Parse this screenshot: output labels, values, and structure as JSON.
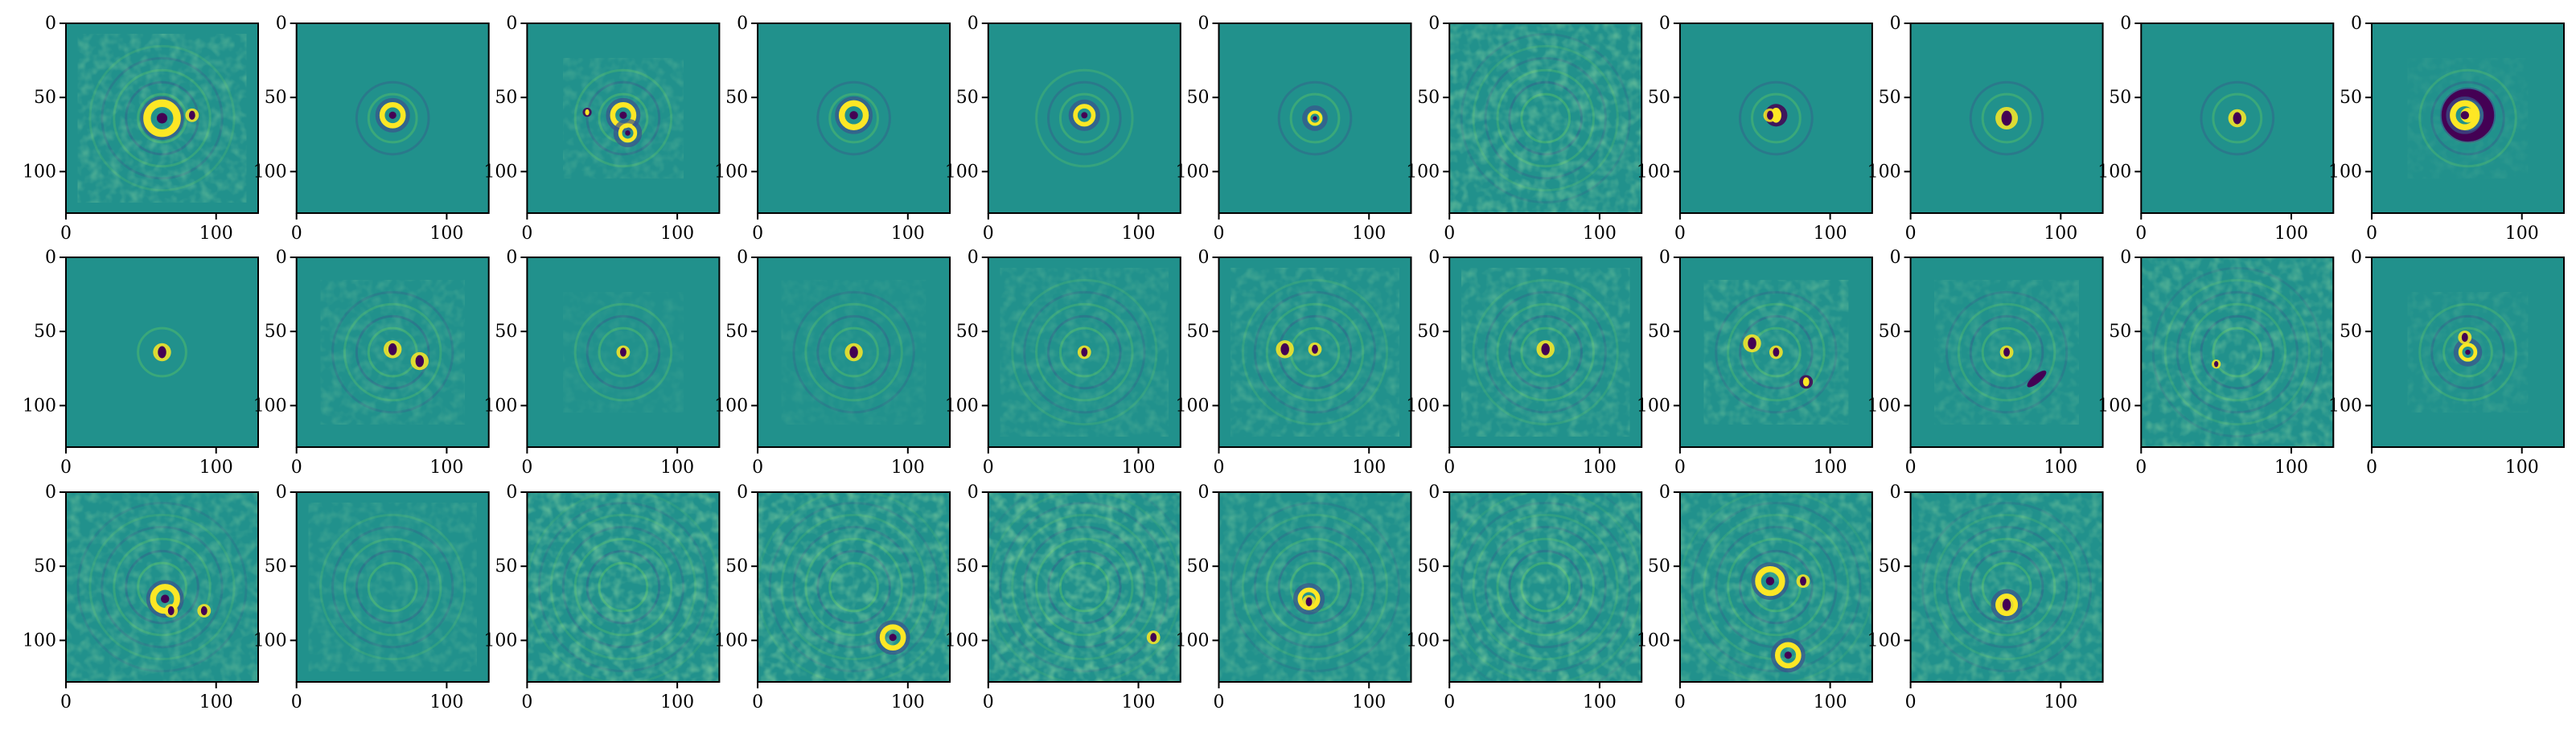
{
  "figure": {
    "rows": 3,
    "cols": 11,
    "panel_count": 31
  },
  "colors": {
    "background": "#21918c",
    "positive": "#fde725",
    "positive_mid": "#5ec962",
    "negative": "#440154",
    "negative_mid": "#3b528b"
  },
  "axis": {
    "x_ticks": [
      0,
      100
    ],
    "y_ticks": [
      0,
      50,
      100
    ],
    "x_tick_labels": [
      "0",
      "100"
    ],
    "y_tick_labels": [
      "0",
      "50",
      "100"
    ],
    "xlim": [
      0,
      128
    ],
    "ylim": [
      128,
      0
    ]
  },
  "chart_data": {
    "type": "heatmap",
    "colormap": "viridis",
    "grid": false,
    "panels": [
      {
        "features": [
          {
            "kind": "ring",
            "x": 64,
            "y": 64,
            "r": 10,
            "a": 0.8
          },
          {
            "kind": "dot",
            "x": 84,
            "y": 62,
            "r": 3,
            "a": -0.9
          }
        ],
        "rings": 5,
        "noise": 0.3
      },
      {
        "features": [
          {
            "kind": "ring",
            "x": 64,
            "y": 62,
            "r": 7,
            "a": 1
          }
        ],
        "rings": 2,
        "noise": 0.05
      },
      {
        "features": [
          {
            "kind": "ring",
            "x": 64,
            "y": 62,
            "r": 7,
            "a": 0.7
          },
          {
            "kind": "ring",
            "x": 67,
            "y": 74,
            "r": 5,
            "a": 1
          },
          {
            "kind": "dot",
            "x": 40,
            "y": 60,
            "r": 2,
            "a": 0.8
          }
        ],
        "rings": 3,
        "noise": 0.2
      },
      {
        "features": [
          {
            "kind": "ring",
            "x": 64,
            "y": 62,
            "r": 8,
            "a": 1
          }
        ],
        "rings": 2,
        "noise": 0.05
      },
      {
        "features": [
          {
            "kind": "ring",
            "x": 64,
            "y": 62,
            "r": 6,
            "a": 0.9
          }
        ],
        "rings": 3,
        "noise": 0.08
      },
      {
        "features": [
          {
            "kind": "ring",
            "x": 64,
            "y": 64,
            "r": 4,
            "a": 0.9
          }
        ],
        "rings": 2,
        "noise": 0.05
      },
      {
        "features": [],
        "rings": 6,
        "noise": 0.4
      },
      {
        "features": [
          {
            "kind": "dot",
            "x": 64,
            "y": 62,
            "r": 5,
            "a": 0.8
          },
          {
            "kind": "dot",
            "x": 60,
            "y": 62,
            "r": 3,
            "a": -0.8
          }
        ],
        "rings": 2,
        "noise": 0.05
      },
      {
        "features": [
          {
            "kind": "dot",
            "x": 64,
            "y": 64,
            "r": 5,
            "a": -1
          }
        ],
        "rings": 2,
        "noise": 0.05
      },
      {
        "features": [
          {
            "kind": "dot",
            "x": 64,
            "y": 64,
            "r": 4,
            "a": -1
          }
        ],
        "rings": 2,
        "noise": 0.05
      },
      {
        "features": [
          {
            "kind": "ring",
            "x": 64,
            "y": 62,
            "r": 14,
            "a": -1
          },
          {
            "kind": "ring",
            "x": 62,
            "y": 62,
            "r": 8,
            "a": 1
          }
        ],
        "rings": 3,
        "noise": 0.1
      },
      {
        "features": [
          {
            "kind": "dot",
            "x": 64,
            "y": 64,
            "r": 4,
            "a": -1
          }
        ],
        "rings": 1,
        "noise": 0.03
      },
      {
        "features": [
          {
            "kind": "dot",
            "x": 64,
            "y": 62,
            "r": 4,
            "a": -1
          },
          {
            "kind": "dot",
            "x": 82,
            "y": 70,
            "r": 4,
            "a": -0.8
          }
        ],
        "rings": 4,
        "noise": 0.2
      },
      {
        "features": [
          {
            "kind": "dot",
            "x": 64,
            "y": 64,
            "r": 3,
            "a": -1
          }
        ],
        "rings": 3,
        "noise": 0.1
      },
      {
        "features": [
          {
            "kind": "dot",
            "x": 64,
            "y": 64,
            "r": 4,
            "a": -1
          }
        ],
        "rings": 4,
        "noise": 0.1
      },
      {
        "features": [
          {
            "kind": "dot",
            "x": 64,
            "y": 64,
            "r": 3,
            "a": -0.8
          }
        ],
        "rings": 5,
        "noise": 0.2
      },
      {
        "features": [
          {
            "kind": "dot",
            "x": 44,
            "y": 62,
            "r": 4,
            "a": -1
          },
          {
            "kind": "dot",
            "x": 64,
            "y": 62,
            "r": 3,
            "a": -0.8
          }
        ],
        "rings": 5,
        "noise": 0.25
      },
      {
        "features": [
          {
            "kind": "dot",
            "x": 64,
            "y": 62,
            "r": 4,
            "a": -0.9
          }
        ],
        "rings": 5,
        "noise": 0.3
      },
      {
        "features": [
          {
            "kind": "dot",
            "x": 48,
            "y": 58,
            "r": 4,
            "a": -0.9
          },
          {
            "kind": "dot",
            "x": 64,
            "y": 64,
            "r": 3,
            "a": -0.8
          },
          {
            "kind": "dot",
            "x": 84,
            "y": 84,
            "r": 3,
            "a": 0.6
          }
        ],
        "rings": 4,
        "noise": 0.3
      },
      {
        "features": [
          {
            "kind": "dot",
            "x": 64,
            "y": 64,
            "r": 3,
            "a": -0.8
          },
          {
            "kind": "bar",
            "x": 84,
            "y": 82,
            "r": 5,
            "a": -1
          }
        ],
        "rings": 4,
        "noise": 0.2
      },
      {
        "features": [
          {
            "kind": "dot",
            "x": 50,
            "y": 72,
            "r": 2,
            "a": -0.8
          }
        ],
        "rings": 6,
        "noise": 0.35
      },
      {
        "features": [
          {
            "kind": "ring",
            "x": 64,
            "y": 64,
            "r": 5,
            "a": 1
          },
          {
            "kind": "dot",
            "x": 62,
            "y": 54,
            "r": 3,
            "a": -1
          }
        ],
        "rings": 3,
        "noise": 0.15
      },
      {
        "features": [
          {
            "kind": "ring",
            "x": 66,
            "y": 72,
            "r": 8,
            "a": 0.9
          },
          {
            "kind": "dot",
            "x": 92,
            "y": 80,
            "r": 3,
            "a": -0.8
          },
          {
            "kind": "dot",
            "x": 70,
            "y": 80,
            "r": 3,
            "a": -1
          }
        ],
        "rings": 6,
        "noise": 0.3
      },
      {
        "features": [],
        "rings": 5,
        "noise": 0.2
      },
      {
        "features": [],
        "rings": 7,
        "noise": 0.45
      },
      {
        "features": [
          {
            "kind": "ring",
            "x": 90,
            "y": 98,
            "r": 7,
            "a": 0.9
          }
        ],
        "rings": 7,
        "noise": 0.45
      },
      {
        "features": [
          {
            "kind": "dot",
            "x": 110,
            "y": 98,
            "r": 3,
            "a": -0.6
          }
        ],
        "rings": 8,
        "noise": 0.5
      },
      {
        "features": [
          {
            "kind": "ring",
            "x": 60,
            "y": 72,
            "r": 6,
            "a": 1
          },
          {
            "kind": "dot",
            "x": 60,
            "y": 74,
            "r": 3,
            "a": -1
          }
        ],
        "rings": 6,
        "noise": 0.3
      },
      {
        "features": [],
        "rings": 8,
        "noise": 0.45
      },
      {
        "features": [
          {
            "kind": "ring",
            "x": 60,
            "y": 60,
            "r": 8,
            "a": 1
          },
          {
            "kind": "dot",
            "x": 82,
            "y": 60,
            "r": 3,
            "a": -1
          },
          {
            "kind": "ring",
            "x": 72,
            "y": 110,
            "r": 7,
            "a": 1
          }
        ],
        "rings": 7,
        "noise": 0.35
      },
      {
        "features": [
          {
            "kind": "dot",
            "x": 64,
            "y": 76,
            "r": 4,
            "a": -1
          },
          {
            "kind": "ring",
            "x": 64,
            "y": 76,
            "r": 6,
            "a": 0.6
          }
        ],
        "rings": 6,
        "noise": 0.35
      }
    ]
  }
}
